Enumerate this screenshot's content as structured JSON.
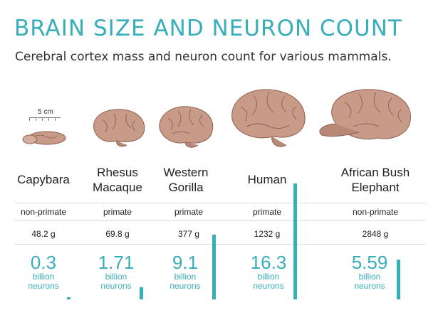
{
  "title": "BRAIN SIZE AND NEURON COUNT",
  "subtitle": "Cerebral cortex mass and neuron count for various mammals.",
  "scale_label": "5 cm",
  "colors": {
    "accent": "#39aebb",
    "brain": "#c89a88",
    "brain_dark": "#8e5f50"
  },
  "chart_data": {
    "type": "bar",
    "title": "BRAIN SIZE AND NEURON COUNT",
    "subtitle": "Cerebral cortex mass and neuron count for various mammals.",
    "categories": [
      "Capybara",
      "Rhesus Macaque",
      "Western Gorilla",
      "Human",
      "African Bush Elephant"
    ],
    "name_lines": [
      [
        "Capybara"
      ],
      [
        "Rhesus",
        "Macaque"
      ],
      [
        "Western",
        "Gorilla"
      ],
      [
        "Human"
      ],
      [
        "African Bush",
        "Elephant"
      ]
    ],
    "category_type": [
      "non-primate",
      "primate",
      "primate",
      "primate",
      "non-primate"
    ],
    "cortex_mass": [
      "48.2 g",
      "69.8 g",
      "377 g",
      "1232 g",
      "2848 g"
    ],
    "neurons_label": [
      "0.3",
      "1.71",
      "9.1",
      "16.3",
      "5.59"
    ],
    "unit_line1": "billion",
    "unit_line2": "neurons",
    "series": [
      {
        "values": [
          0.3,
          1.71,
          9.1,
          16.3,
          5.59
        ]
      }
    ],
    "ylim": [
      0,
      16.3
    ],
    "grid": false
  }
}
